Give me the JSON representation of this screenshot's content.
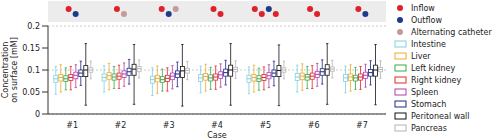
{
  "chart_data": {
    "type": "boxplot",
    "y_label": "Concentration on surface [mM]",
    "x_label": "Case",
    "categories": [
      "#1",
      "#2",
      "#3",
      "#4",
      "#5",
      "#6",
      "#7"
    ],
    "ylim": [
      0,
      0.2
    ],
    "yticks": [
      0,
      0.05,
      0.1,
      0.15,
      0.2
    ],
    "grid": true,
    "legend": "right",
    "catheter_types": [
      {
        "name": "Inflow",
        "color": "#e0202a"
      },
      {
        "name": "Outflow",
        "color": "#1f3a8a"
      },
      {
        "name": "Alternating catheter",
        "color": "#c49a9a"
      }
    ],
    "catheters": [
      [
        "Inflow",
        "Outflow"
      ],
      [
        "Inflow",
        "Alternating catheter"
      ],
      [
        "Inflow",
        "Outflow",
        "Alternating catheter"
      ],
      [
        "Inflow",
        "Inflow"
      ],
      [
        "Inflow",
        "Inflow",
        "Outflow",
        "Inflow"
      ],
      [
        "Inflow",
        "Inflow"
      ],
      [
        "Inflow",
        "Outflow"
      ]
    ],
    "series": [
      {
        "name": "Intestine",
        "color": "#7fd0e0",
        "values": [
          [
            0.045,
            0.072,
            0.08,
            0.088,
            0.108
          ],
          [
            0.05,
            0.075,
            0.083,
            0.091,
            0.11
          ],
          [
            0.042,
            0.07,
            0.078,
            0.086,
            0.105
          ],
          [
            0.048,
            0.074,
            0.082,
            0.09,
            0.109
          ],
          [
            0.046,
            0.072,
            0.08,
            0.088,
            0.107
          ],
          [
            0.05,
            0.076,
            0.084,
            0.092,
            0.111
          ],
          [
            0.048,
            0.074,
            0.082,
            0.09,
            0.109
          ]
        ]
      },
      {
        "name": "Liver",
        "color": "#f0a830",
        "values": [
          [
            0.05,
            0.075,
            0.083,
            0.09,
            0.112
          ],
          [
            0.055,
            0.079,
            0.087,
            0.094,
            0.115
          ],
          [
            0.047,
            0.073,
            0.081,
            0.088,
            0.109
          ],
          [
            0.052,
            0.077,
            0.085,
            0.092,
            0.113
          ],
          [
            0.05,
            0.075,
            0.083,
            0.09,
            0.111
          ],
          [
            0.054,
            0.078,
            0.086,
            0.093,
            0.114
          ],
          [
            0.052,
            0.076,
            0.084,
            0.091,
            0.112
          ]
        ]
      },
      {
        "name": "Left kidney",
        "color": "#3aa84a",
        "values": [
          [
            0.055,
            0.074,
            0.08,
            0.087,
            0.105
          ],
          [
            0.058,
            0.077,
            0.084,
            0.091,
            0.108
          ],
          [
            0.052,
            0.072,
            0.078,
            0.085,
            0.102
          ],
          [
            0.056,
            0.075,
            0.082,
            0.089,
            0.106
          ],
          [
            0.054,
            0.074,
            0.08,
            0.087,
            0.104
          ],
          [
            0.058,
            0.077,
            0.084,
            0.09,
            0.108
          ],
          [
            0.056,
            0.075,
            0.082,
            0.088,
            0.106
          ]
        ]
      },
      {
        "name": "Right kidney",
        "color": "#e02828",
        "values": [
          [
            0.055,
            0.076,
            0.083,
            0.09,
            0.108
          ],
          [
            0.058,
            0.079,
            0.086,
            0.093,
            0.111
          ],
          [
            0.052,
            0.074,
            0.081,
            0.088,
            0.105
          ],
          [
            0.056,
            0.077,
            0.084,
            0.091,
            0.109
          ],
          [
            0.055,
            0.076,
            0.083,
            0.09,
            0.107
          ],
          [
            0.058,
            0.079,
            0.086,
            0.093,
            0.11
          ],
          [
            0.056,
            0.077,
            0.084,
            0.091,
            0.108
          ]
        ]
      },
      {
        "name": "Spleen",
        "color": "#b03cb0",
        "values": [
          [
            0.06,
            0.08,
            0.088,
            0.095,
            0.112
          ],
          [
            0.063,
            0.083,
            0.091,
            0.098,
            0.116
          ],
          [
            0.057,
            0.078,
            0.086,
            0.093,
            0.11
          ],
          [
            0.061,
            0.081,
            0.089,
            0.096,
            0.114
          ],
          [
            0.06,
            0.08,
            0.087,
            0.094,
            0.112
          ],
          [
            0.063,
            0.083,
            0.09,
            0.097,
            0.115
          ],
          [
            0.061,
            0.081,
            0.088,
            0.095,
            0.113
          ]
        ]
      },
      {
        "name": "Stomach",
        "color": "#1c2a80",
        "values": [
          [
            0.065,
            0.085,
            0.093,
            0.1,
            0.12
          ],
          [
            0.068,
            0.088,
            0.096,
            0.104,
            0.124
          ],
          [
            0.062,
            0.083,
            0.091,
            0.098,
            0.118
          ],
          [
            0.066,
            0.086,
            0.094,
            0.102,
            0.122
          ],
          [
            0.064,
            0.085,
            0.093,
            0.1,
            0.12
          ],
          [
            0.068,
            0.088,
            0.096,
            0.103,
            0.123
          ],
          [
            0.066,
            0.086,
            0.094,
            0.101,
            0.121
          ]
        ]
      },
      {
        "name": "Peritoneal wall",
        "color": "#111111",
        "values": [
          [
            0.02,
            0.085,
            0.1,
            0.11,
            0.16
          ],
          [
            0.022,
            0.088,
            0.102,
            0.113,
            0.158
          ],
          [
            0.018,
            0.083,
            0.098,
            0.108,
            0.158
          ],
          [
            0.02,
            0.086,
            0.1,
            0.111,
            0.16
          ],
          [
            0.019,
            0.085,
            0.099,
            0.11,
            0.157
          ],
          [
            0.022,
            0.088,
            0.102,
            0.112,
            0.16
          ],
          [
            0.021,
            0.086,
            0.1,
            0.111,
            0.158
          ]
        ]
      },
      {
        "name": "Pancreas",
        "color": "#b4b4b4",
        "values": [
          [
            0.08,
            0.095,
            0.1,
            0.105,
            0.12
          ],
          [
            0.082,
            0.097,
            0.103,
            0.108,
            0.123
          ],
          [
            0.078,
            0.093,
            0.099,
            0.104,
            0.119
          ],
          [
            0.081,
            0.096,
            0.101,
            0.106,
            0.121
          ],
          [
            0.08,
            0.095,
            0.1,
            0.105,
            0.12
          ],
          [
            0.082,
            0.097,
            0.102,
            0.107,
            0.122
          ],
          [
            0.081,
            0.096,
            0.101,
            0.106,
            0.121
          ]
        ]
      }
    ]
  }
}
